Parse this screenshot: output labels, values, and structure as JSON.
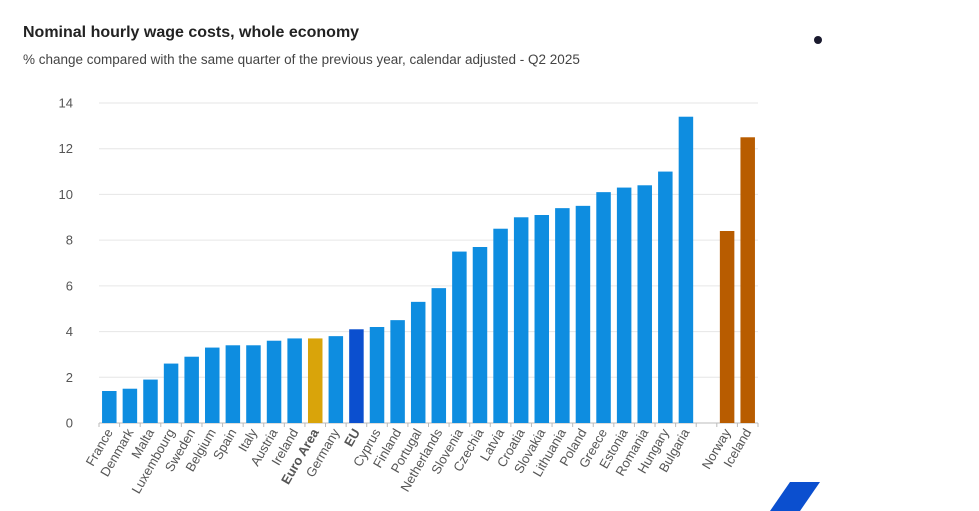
{
  "chart_data": {
    "type": "bar",
    "title": "Nominal hourly wage costs, whole economy",
    "subtitle": "% change compared with the same quarter of the previous year, calendar adjusted - Q2 2025",
    "xlabel": "",
    "ylabel": "",
    "ylim": [
      0,
      14
    ],
    "yticks": [
      0,
      2,
      4,
      6,
      8,
      10,
      12,
      14
    ],
    "grid": true,
    "legend": "none",
    "categories": [
      "France",
      "Denmark",
      "Malta",
      "Luxembourg",
      "Sweden",
      "Belgium",
      "Spain",
      "Italy",
      "Austria",
      "Ireland",
      "Euro Area",
      "Germany",
      "EU",
      "Cyprus",
      "Finland",
      "Portugal",
      "Netherlands",
      "Slovenia",
      "Czechia",
      "Latvia",
      "Croatia",
      "Slovakia",
      "Lithuania",
      "Poland",
      "Greece",
      "Estonia",
      "Romania",
      "Hungary",
      "Bulgaria",
      "",
      "Norway",
      "Iceland"
    ],
    "values": [
      1.4,
      1.5,
      1.9,
      2.6,
      2.9,
      3.3,
      3.4,
      3.4,
      3.6,
      3.7,
      3.7,
      3.8,
      4.1,
      4.2,
      4.5,
      5.3,
      5.9,
      7.5,
      7.7,
      8.5,
      9.0,
      9.1,
      9.4,
      9.5,
      10.1,
      10.3,
      10.4,
      11.0,
      13.4,
      null,
      8.4,
      12.5
    ],
    "bold_categories": [
      "Euro Area",
      "EU"
    ],
    "colors": {
      "member": "#0e8de0",
      "euro_area": "#d9a40a",
      "eu": "#0b4fcf",
      "efta": "#b85c00",
      "grid": "#e6e6e6",
      "axis": "#bbbbbb"
    },
    "bar_groups": [
      "member",
      "member",
      "member",
      "member",
      "member",
      "member",
      "member",
      "member",
      "member",
      "member",
      "euro_area",
      "member",
      "eu",
      "member",
      "member",
      "member",
      "member",
      "member",
      "member",
      "member",
      "member",
      "member",
      "member",
      "member",
      "member",
      "member",
      "member",
      "member",
      "member",
      "gap",
      "efta",
      "efta"
    ]
  }
}
